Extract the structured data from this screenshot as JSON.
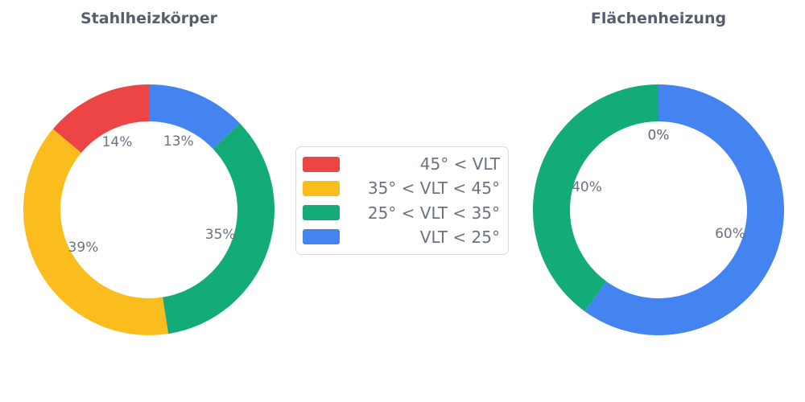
{
  "page": {
    "background": "#ffffff"
  },
  "colors": {
    "red": "#ED4545",
    "yellow": "#FBBC1E",
    "green": "#13AB77",
    "blue": "#4384F0",
    "title_text": "#565E6C",
    "label_text": "#6A7282",
    "legend_border": "#D8DADE"
  },
  "legend": {
    "position": "center-between-charts",
    "items": [
      {
        "label": "45° < VLT",
        "color_key": "red"
      },
      {
        "label": "35° < VLT < 45°",
        "color_key": "yellow"
      },
      {
        "label": "25° < VLT < 35°",
        "color_key": "green"
      },
      {
        "label": "VLT < 25°",
        "color_key": "blue"
      }
    ]
  },
  "chart_data": [
    {
      "type": "pie",
      "subtype": "donut",
      "title": "Stahlheizkörper",
      "start_angle": 90,
      "direction": "counterclockwise",
      "hole_ratio": 0.705,
      "slices": [
        {
          "legend_label": "45° < VLT",
          "value_pct": 14,
          "display_label": "14%",
          "color_key": "red"
        },
        {
          "legend_label": "35° < VLT < 45°",
          "value_pct": 39,
          "display_label": "39%",
          "color_key": "yellow"
        },
        {
          "legend_label": "25° < VLT < 35°",
          "value_pct": 35,
          "display_label": "35%",
          "color_key": "green"
        },
        {
          "legend_label": "VLT < 25°",
          "value_pct": 13,
          "display_label": "13%",
          "color_key": "blue"
        }
      ]
    },
    {
      "type": "pie",
      "subtype": "donut",
      "title": "Flächenheizung",
      "start_angle": 90,
      "direction": "counterclockwise",
      "hole_ratio": 0.705,
      "slices": [
        {
          "legend_label": "45° < VLT",
          "value_pct": 0,
          "display_label": "0%",
          "color_key": "red"
        },
        {
          "legend_label": "35° < VLT < 45°",
          "value_pct": 0,
          "display_label": "0%",
          "color_key": "yellow"
        },
        {
          "legend_label": "25° < VLT < 35°",
          "value_pct": 40,
          "display_label": "40%",
          "color_key": "green"
        },
        {
          "legend_label": "VLT < 25°",
          "value_pct": 60,
          "display_label": "60%",
          "color_key": "blue"
        }
      ]
    }
  ]
}
